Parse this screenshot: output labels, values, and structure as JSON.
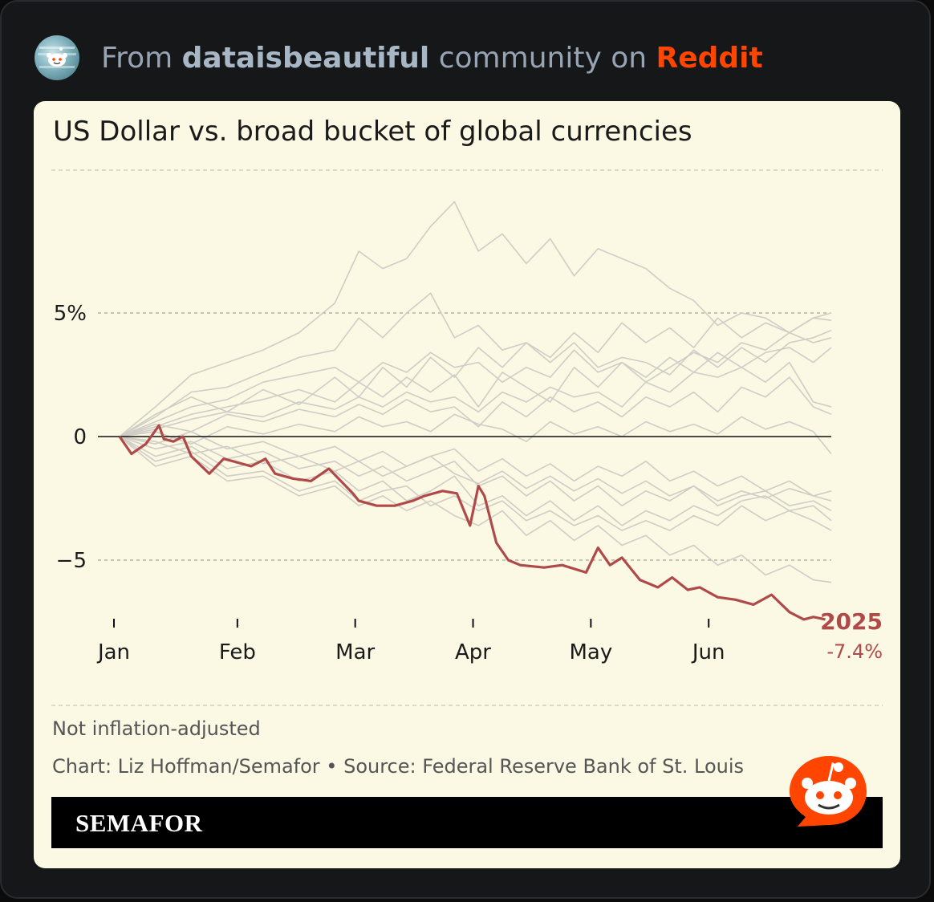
{
  "header": {
    "from": "From",
    "community": "dataisbeautiful",
    "middle": "community on",
    "platform": "Reddit"
  },
  "card": {
    "note": "Not inflation-adjusted",
    "credit": "Chart: Liz Hoffman/Semafor • Source: Federal Reserve Bank of St. Louis",
    "brand": "SEMAFOR"
  },
  "colors": {
    "highlight": "#b04a4a",
    "background_lines": "#cfcdc6",
    "reddit_orange": "#ff4500"
  },
  "chart_data": {
    "type": "line",
    "title": "US Dollar vs. broad bucket of global currencies",
    "x_ticks": [
      "Jan",
      "Feb",
      "Mar",
      "Apr",
      "May",
      "Jun"
    ],
    "x_tick_positions": [
      0,
      1,
      2,
      3,
      4,
      5
    ],
    "y_ticks": [
      {
        "value": 5,
        "label": "5%"
      },
      {
        "value": 0,
        "label": "0"
      },
      {
        "value": -5,
        "label": "−5"
      }
    ],
    "ylim": [
      -8,
      10
    ],
    "xlim": [
      0,
      5.95
    ],
    "highlight": {
      "name": "2025",
      "end_label": "-7.4%",
      "x": [
        0,
        0.1,
        0.22,
        0.33,
        0.37,
        0.45,
        0.53,
        0.6,
        0.75,
        0.87,
        0.95,
        1.1,
        1.22,
        1.3,
        1.45,
        1.6,
        1.75,
        1.95,
        2.0,
        2.15,
        2.3,
        2.45,
        2.55,
        2.7,
        2.82,
        2.93,
        3.0,
        3.05,
        3.15,
        3.25,
        3.35,
        3.55,
        3.7,
        3.9,
        4.0,
        4.1,
        4.2,
        4.35,
        4.5,
        4.62,
        4.75,
        4.85,
        5.0,
        5.15,
        5.3,
        5.45,
        5.6,
        5.72,
        5.8,
        5.9
      ],
      "y": [
        0,
        -0.7,
        -0.3,
        0.45,
        -0.1,
        -0.2,
        0,
        -0.8,
        -1.5,
        -0.9,
        -1.0,
        -1.2,
        -0.9,
        -1.5,
        -1.7,
        -1.8,
        -1.3,
        -2.3,
        -2.6,
        -2.8,
        -2.8,
        -2.6,
        -2.4,
        -2.2,
        -2.3,
        -3.6,
        -2.0,
        -2.4,
        -4.3,
        -5.0,
        -5.2,
        -5.3,
        -5.2,
        -5.5,
        -4.5,
        -5.2,
        -4.9,
        -5.8,
        -6.1,
        -5.7,
        -6.2,
        -6.1,
        -6.5,
        -6.6,
        -6.8,
        -6.4,
        -7.1,
        -7.4,
        -7.3,
        -7.4
      ]
    },
    "background_series": [
      {
        "x": [
          0,
          0.3,
          0.6,
          0.9,
          1.2,
          1.5,
          1.8,
          2.0,
          2.2,
          2.4,
          2.6,
          2.8,
          3.0,
          3.2,
          3.4,
          3.6,
          3.8,
          4.0,
          4.2,
          4.4,
          4.6,
          4.8,
          5.0,
          5.2,
          5.4,
          5.6,
          5.8,
          5.95
        ],
        "y": [
          0,
          1.2,
          2.5,
          3.0,
          3.5,
          4.2,
          5.4,
          7.5,
          6.8,
          7.2,
          8.5,
          9.5,
          7.5,
          8.2,
          7.0,
          8.0,
          6.5,
          7.6,
          7.2,
          6.8,
          6.0,
          5.5,
          4.5,
          5.0,
          4.8,
          4.2,
          4.8,
          5.0
        ]
      },
      {
        "x": [
          0,
          0.3,
          0.6,
          0.9,
          1.2,
          1.5,
          1.8,
          2.0,
          2.2,
          2.4,
          2.6,
          2.8,
          3.0,
          3.2,
          3.4,
          3.6,
          3.8,
          4.0,
          4.2,
          4.4,
          4.6,
          4.8,
          5.0,
          5.2,
          5.4,
          5.6,
          5.8,
          5.95
        ],
        "y": [
          0,
          0.8,
          1.8,
          2.0,
          2.6,
          3.2,
          3.5,
          4.8,
          4.0,
          5.0,
          5.8,
          4.0,
          4.5,
          3.5,
          3.8,
          3.0,
          3.8,
          2.8,
          3.2,
          3.0,
          2.5,
          3.5,
          2.8,
          3.6,
          3.0,
          3.8,
          4.0,
          4.3
        ]
      },
      {
        "x": [
          0,
          0.3,
          0.6,
          0.9,
          1.2,
          1.5,
          1.8,
          2.0,
          2.2,
          2.4,
          2.6,
          2.8,
          3.0,
          3.2,
          3.4,
          3.6,
          3.8,
          4.0,
          4.2,
          4.4,
          4.6,
          4.8,
          5.0,
          5.2,
          5.4,
          5.6,
          5.8,
          5.95
        ],
        "y": [
          0,
          0.6,
          1.2,
          1.5,
          2.2,
          2.5,
          2.8,
          2.2,
          3.0,
          2.6,
          3.4,
          2.8,
          3.0,
          2.2,
          2.8,
          2.4,
          3.5,
          2.6,
          3.0,
          2.2,
          2.8,
          3.4,
          3.0,
          3.8,
          3.5,
          4.2,
          3.8,
          4.0
        ]
      },
      {
        "x": [
          0,
          0.3,
          0.6,
          0.9,
          1.2,
          1.5,
          1.8,
          2.0,
          2.2,
          2.4,
          2.6,
          2.8,
          3.0,
          3.2,
          3.4,
          3.6,
          3.8,
          4.0,
          4.2,
          4.4,
          4.6,
          4.8,
          5.0,
          5.2,
          5.4,
          5.6,
          5.8,
          5.95
        ],
        "y": [
          0,
          0.4,
          0.9,
          1.2,
          1.5,
          1.9,
          1.4,
          2.2,
          1.6,
          2.4,
          1.8,
          2.5,
          1.2,
          2.6,
          2.0,
          1.4,
          2.8,
          2.0,
          3.0,
          2.4,
          3.2,
          2.6,
          3.4,
          2.8,
          3.4,
          3.6,
          3.0,
          3.6
        ]
      },
      {
        "x": [
          0,
          0.3,
          0.6,
          0.9,
          1.2,
          1.5,
          1.8,
          2.0,
          2.2,
          2.4,
          2.6,
          2.8,
          3.0,
          3.2,
          3.4,
          3.6,
          3.8,
          4.0,
          4.2,
          4.4,
          4.6,
          4.8,
          5.0,
          5.2,
          5.4,
          5.6,
          5.8,
          5.95
        ],
        "y": [
          0,
          0.3,
          0.7,
          1.0,
          0.8,
          1.4,
          1.1,
          1.6,
          1.2,
          1.8,
          1.4,
          1.6,
          1.0,
          1.8,
          1.4,
          2.0,
          1.6,
          1.8,
          1.2,
          2.2,
          1.8,
          2.6,
          2.4,
          2.8,
          2.2,
          3.0,
          1.4,
          1.2
        ]
      },
      {
        "x": [
          0,
          0.3,
          0.6,
          0.9,
          1.2,
          1.5,
          1.8,
          2.0,
          2.2,
          2.4,
          2.6,
          2.8,
          3.0,
          3.2,
          3.4,
          3.6,
          3.8,
          4.0,
          4.2,
          4.4,
          4.6,
          4.8,
          5.0,
          5.2,
          5.4,
          5.6,
          5.8,
          5.95
        ],
        "y": [
          0,
          0.5,
          0.2,
          0.9,
          0.6,
          1.1,
          0.8,
          1.3,
          0.9,
          1.5,
          1.0,
          1.2,
          0.4,
          1.4,
          0.8,
          1.6,
          1.0,
          1.4,
          0.8,
          1.6,
          1.2,
          1.8,
          1.0,
          2.0,
          1.6,
          2.4,
          1.2,
          0.9
        ]
      },
      {
        "x": [
          0,
          0.3,
          0.6,
          0.9,
          1.2,
          1.5,
          1.8,
          2.0,
          2.2,
          2.4,
          2.6,
          2.8,
          3.0,
          3.2,
          3.4,
          3.6,
          3.8,
          4.0,
          4.2,
          4.4,
          4.6,
          4.8,
          5.0,
          5.2,
          5.4,
          5.6,
          5.8,
          5.95
        ],
        "y": [
          0,
          0.2,
          -0.3,
          0.4,
          0.1,
          0.5,
          0.2,
          0.8,
          0.4,
          0.6,
          0.2,
          0.9,
          0.5,
          0.3,
          -0.2,
          0.6,
          0.1,
          0.4,
          0.0,
          0.6,
          0.2,
          0.5,
          0.1,
          0.8,
          0.3,
          0.6,
          0.2,
          -0.7
        ]
      },
      {
        "x": [
          0,
          0.3,
          0.6,
          0.9,
          1.2,
          1.5,
          1.8,
          2.0,
          2.2,
          2.4,
          2.6,
          2.8,
          3.0,
          3.2,
          3.4,
          3.6,
          3.8,
          4.0,
          4.2,
          4.4,
          4.6,
          4.8,
          5.0,
          5.2,
          5.4,
          5.6,
          5.8,
          5.95
        ],
        "y": [
          0,
          -0.3,
          0.2,
          -0.5,
          -0.2,
          -0.8,
          -0.4,
          -1.0,
          -0.6,
          -1.2,
          -0.8,
          -0.5,
          -1.4,
          -0.9,
          -1.6,
          -1.1,
          -1.8,
          -1.2,
          -1.6,
          -1.0,
          -1.8,
          -1.4,
          -2.0,
          -1.6,
          -2.2,
          -1.8,
          -2.4,
          -2.2
        ]
      },
      {
        "x": [
          0,
          0.3,
          0.6,
          0.9,
          1.2,
          1.5,
          1.8,
          2.0,
          2.2,
          2.4,
          2.6,
          2.8,
          3.0,
          3.2,
          3.4,
          3.6,
          3.8,
          4.0,
          4.2,
          4.4,
          4.6,
          4.8,
          5.0,
          5.2,
          5.4,
          5.6,
          5.8,
          5.95
        ],
        "y": [
          0,
          -0.5,
          -0.2,
          -0.9,
          -0.6,
          -1.3,
          -1.0,
          -1.6,
          -1.2,
          -1.8,
          -1.4,
          -1.0,
          -2.0,
          -1.6,
          -2.4,
          -1.8,
          -2.6,
          -2.0,
          -2.8,
          -2.2,
          -2.6,
          -2.0,
          -2.8,
          -2.4,
          -2.2,
          -2.8,
          -2.6,
          -3.0
        ]
      },
      {
        "x": [
          0,
          0.3,
          0.6,
          0.9,
          1.2,
          1.5,
          1.8,
          2.0,
          2.2,
          2.4,
          2.6,
          2.8,
          3.0,
          3.2,
          3.4,
          3.6,
          3.8,
          4.0,
          4.2,
          4.4,
          4.6,
          4.8,
          5.0,
          5.2,
          5.4,
          5.6,
          5.8,
          5.95
        ],
        "y": [
          0,
          -0.8,
          -0.4,
          -1.3,
          -1.0,
          -1.8,
          -1.4,
          -2.2,
          -1.8,
          -2.6,
          -2.2,
          -1.6,
          -2.8,
          -2.4,
          -3.2,
          -2.6,
          -3.4,
          -2.8,
          -3.6,
          -3.0,
          -3.4,
          -2.8,
          -3.2,
          -2.6,
          -2.4,
          -3.0,
          -2.8,
          -3.4
        ]
      },
      {
        "x": [
          0,
          0.3,
          0.6,
          0.9,
          1.2,
          1.5,
          1.8,
          2.0,
          2.2,
          2.4,
          2.6,
          2.8,
          3.0,
          3.2,
          3.4,
          3.6,
          3.8,
          4.0,
          4.2,
          4.4,
          4.6,
          4.8,
          5.0,
          5.2,
          5.4,
          5.6,
          5.8,
          5.95
        ],
        "y": [
          0,
          -1.0,
          -0.6,
          -1.6,
          -1.4,
          -2.2,
          -1.8,
          -2.6,
          -2.2,
          -2.0,
          -2.8,
          -2.4,
          -3.0,
          -2.6,
          -3.4,
          -3.0,
          -3.6,
          -3.2,
          -3.8,
          -3.4,
          -3.8,
          -3.2,
          -3.6,
          -2.8,
          -3.4,
          -3.0,
          -3.4,
          -3.8
        ]
      },
      {
        "x": [
          0,
          0.3,
          0.6,
          0.9,
          1.2,
          1.5,
          1.8,
          2.0,
          2.2,
          2.4,
          2.6,
          2.8,
          3.0,
          3.2,
          3.4,
          3.6,
          3.8,
          4.0,
          4.2,
          4.4,
          4.6,
          4.8,
          5.0,
          5.2,
          5.4,
          5.6,
          5.8,
          5.95
        ],
        "y": [
          0,
          -1.2,
          -0.8,
          -1.8,
          -1.6,
          -2.4,
          -2.0,
          -2.8,
          -2.4,
          -3.0,
          -2.6,
          -3.2,
          -3.6,
          -3.0,
          -4.0,
          -3.4,
          -4.2,
          -3.6,
          -4.4,
          -4.0,
          -4.8,
          -4.4,
          -5.2,
          -4.8,
          -5.6,
          -5.2,
          -5.8,
          -5.9
        ]
      },
      {
        "x": [
          0,
          0.3,
          0.6,
          0.9,
          1.2,
          1.5,
          1.8,
          2.0,
          2.2,
          2.4,
          2.6,
          2.8,
          3.0,
          3.2,
          3.4,
          3.6,
          3.8,
          4.0,
          4.2,
          4.4,
          4.6,
          4.8,
          5.0,
          5.2,
          5.4,
          5.6,
          5.8,
          5.95
        ],
        "y": [
          0,
          0.9,
          1.6,
          1.0,
          1.9,
          1.3,
          2.4,
          1.6,
          2.8,
          2.0,
          3.2,
          2.4,
          3.6,
          2.8,
          3.8,
          3.2,
          4.2,
          3.4,
          4.6,
          3.8,
          4.4,
          3.6,
          4.8,
          4.0,
          4.6,
          4.2,
          4.8,
          4.7
        ]
      },
      {
        "x": [
          0,
          0.3,
          0.6,
          0.9,
          1.2,
          1.5,
          1.8,
          2.0,
          2.2,
          2.4,
          2.6,
          2.8,
          3.0,
          3.2,
          3.4,
          3.6,
          3.8,
          4.0,
          4.2,
          4.4,
          4.6,
          4.8,
          5.0,
          5.2,
          5.4,
          5.6,
          5.8,
          5.95
        ],
        "y": [
          0,
          -0.2,
          -0.7,
          -0.4,
          -1.1,
          -0.8,
          -1.4,
          -1.0,
          -1.6,
          -1.2,
          -0.8,
          -1.5,
          -1.9,
          -1.4,
          -2.1,
          -1.6,
          -2.2,
          -1.7,
          -2.3,
          -1.8,
          -2.4,
          -2.0,
          -2.6,
          -2.2,
          -2.5,
          -2.1,
          -2.4,
          -2.6
        ]
      }
    ]
  }
}
